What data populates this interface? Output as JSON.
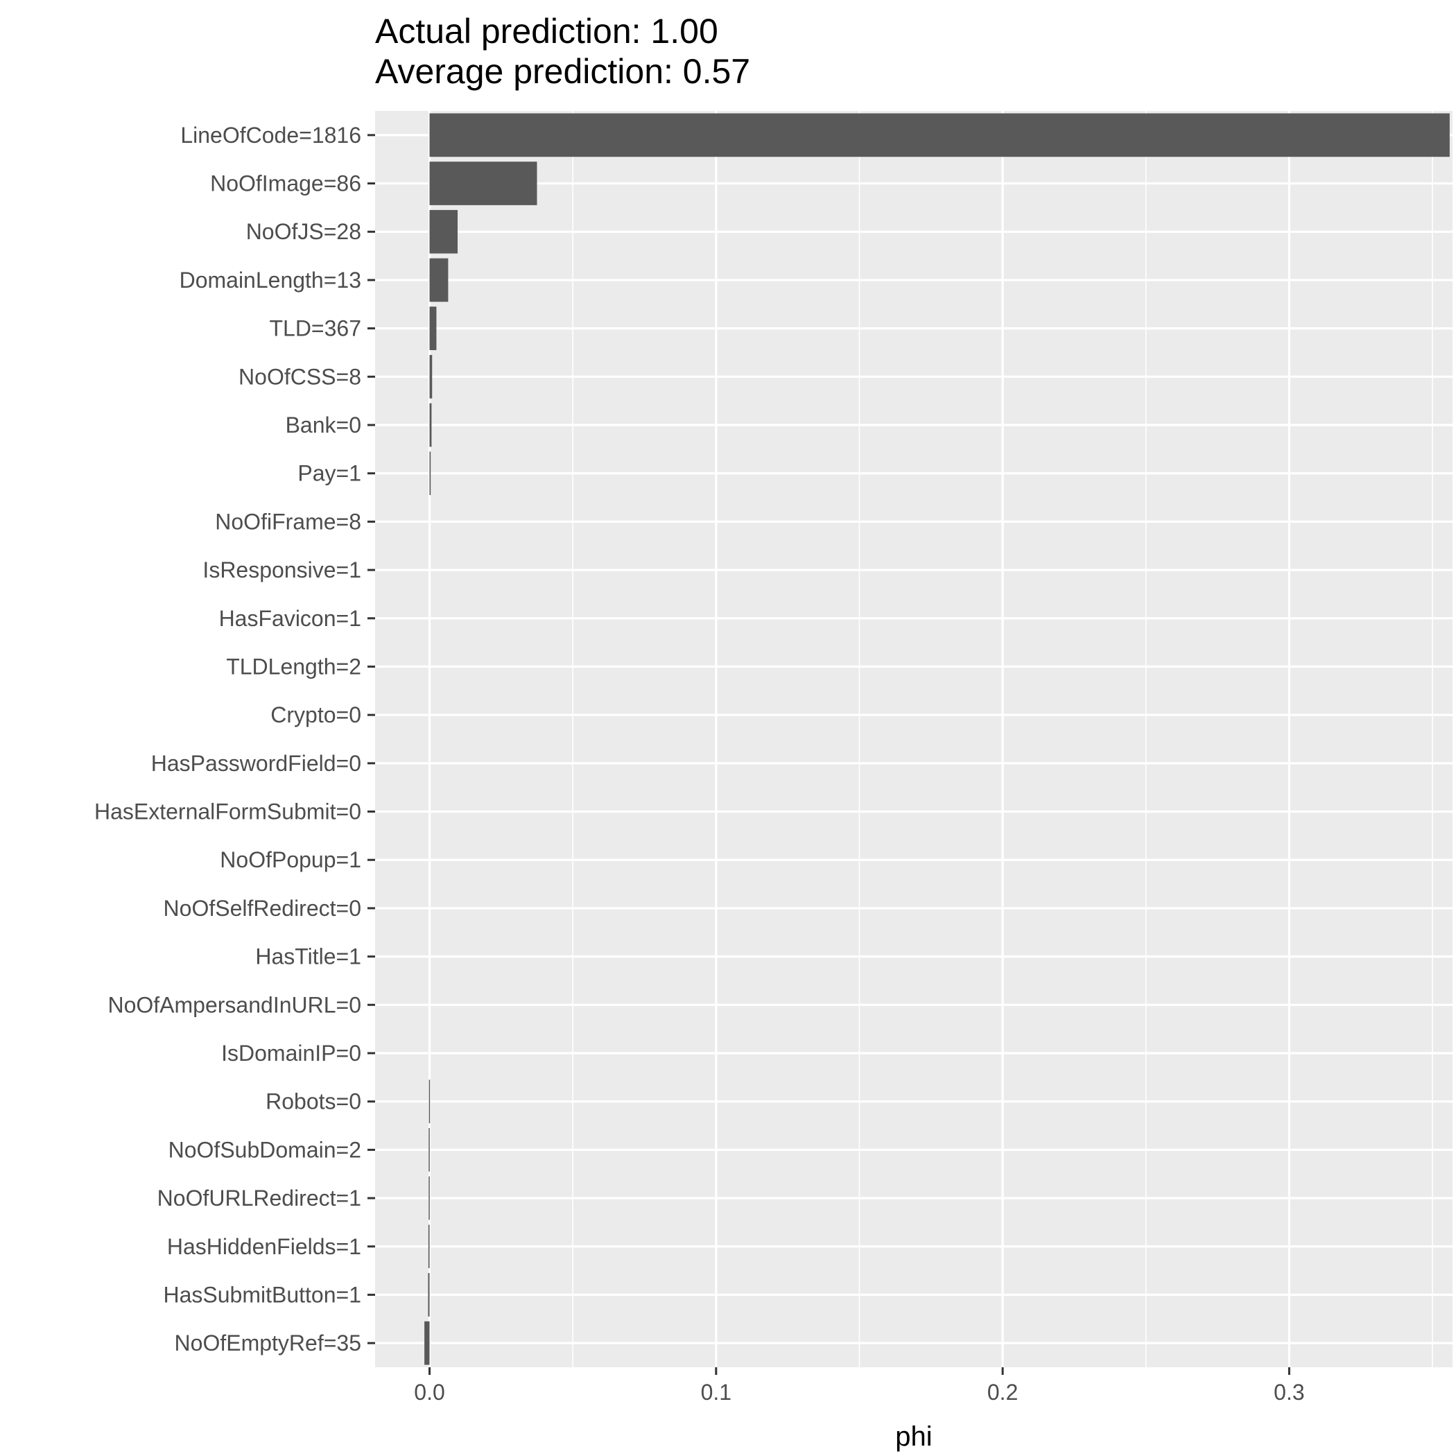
{
  "chart_data": {
    "type": "bar",
    "orientation": "horizontal",
    "title_lines": [
      "Actual prediction: 1.00",
      "Average prediction: 0.57"
    ],
    "xlabel": "phi",
    "ylabel": "",
    "xlim": [
      -0.019,
      0.357
    ],
    "x_ticks": [
      0.0,
      0.1,
      0.2,
      0.3
    ],
    "x_tick_labels": [
      "0.0",
      "0.1",
      "0.2",
      "0.3"
    ],
    "grid": true,
    "legend": "none",
    "colors": {
      "bar": "#595959",
      "panel": "#ebebeb",
      "grid": "#ffffff",
      "tick_text": "#4d4d4d",
      "tick_mark": "#333333"
    },
    "categories": [
      "LineOfCode=1816",
      "NoOfImage=86",
      "NoOfJS=28",
      "DomainLength=13",
      "TLD=367",
      "NoOfCSS=8",
      "Bank=0",
      "Pay=1",
      "NoOfiFrame=8",
      "IsResponsive=1",
      "HasFavicon=1",
      "TLDLength=2",
      "Crypto=0",
      "HasPasswordField=0",
      "HasExternalFormSubmit=0",
      "NoOfPopup=1",
      "NoOfSelfRedirect=0",
      "HasTitle=1",
      "NoOfAmpersandInURL=0",
      "IsDomainIP=0",
      "Robots=0",
      "NoOfSubDomain=2",
      "NoOfURLRedirect=1",
      "HasHiddenFields=1",
      "HasSubmitButton=1",
      "NoOfEmptyRef=35"
    ],
    "values": [
      0.356,
      0.0375,
      0.0098,
      0.0065,
      0.0024,
      0.0009,
      0.0007,
      0.0004,
      0.0,
      0.0,
      0.0,
      0.0,
      0.0,
      0.0,
      0.0,
      0.0,
      0.0,
      0.0,
      0.0,
      0.0,
      -0.0002,
      -0.0003,
      -0.0003,
      -0.0004,
      -0.0005,
      -0.0018
    ]
  }
}
